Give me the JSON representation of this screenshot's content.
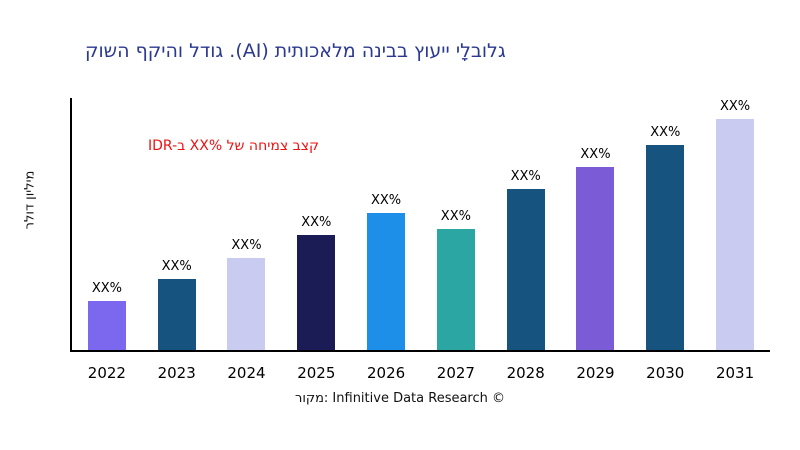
{
  "chart_data": {
    "type": "bar",
    "title": "קושה ףקיהו לדוג .(AI) תיתוכאלמ הניבב ץועיי ילָבולג",
    "ylabel": "רלוד ןוילימ",
    "annotation": "IDR-ב XX% לש החימצ בצק",
    "source": "רוקמ: Infinitive Data Research ©",
    "categories": [
      "2022",
      "2023",
      "2024",
      "2025",
      "2026",
      "2027",
      "2028",
      "2029",
      "2030",
      "2031"
    ],
    "bar_labels": [
      "XX%",
      "XX%",
      "XX%",
      "XX%",
      "XX%",
      "XX%",
      "XX%",
      "XX%",
      "XX%",
      "XX%"
    ],
    "values_pct_of_plot_height": [
      19.5,
      28,
      36.5,
      45.5,
      54.5,
      48,
      64,
      72.5,
      81.5,
      91.5
    ],
    "bar_colors": [
      "#7B68EE",
      "#16537E",
      "#C9CBF0",
      "#1B1B55",
      "#1E8FE8",
      "#2CA6A2",
      "#16537E",
      "#7C5CD6",
      "#16537E",
      "#C9CBF0"
    ],
    "title_color": "#2B3990",
    "annotation_color": "#EE1111",
    "axis_color": "#000000",
    "grid": false,
    "legend": false,
    "y_axis_tick_labels_visible": false
  }
}
